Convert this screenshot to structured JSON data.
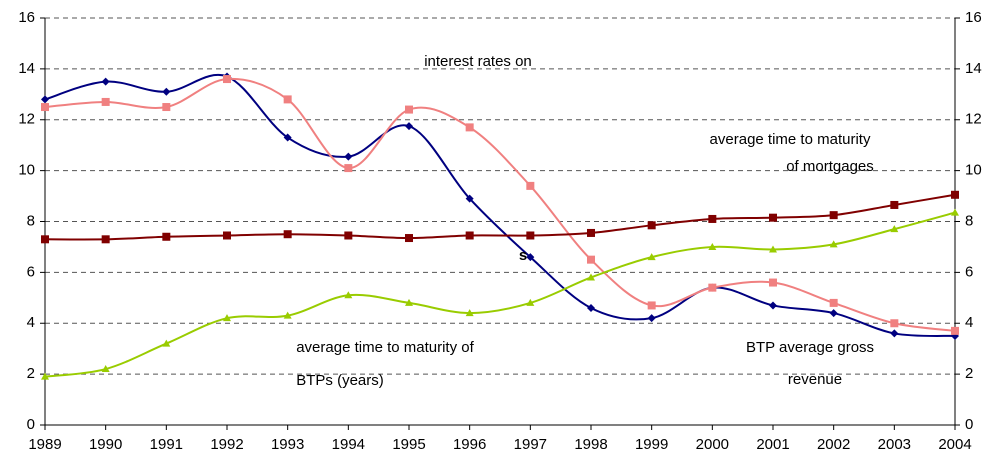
{
  "chart_data": {
    "type": "line",
    "categories": [
      "1989",
      "1990",
      "1991",
      "1992",
      "1993",
      "1994",
      "1995",
      "1996",
      "1997",
      "1998",
      "1999",
      "2000",
      "2001",
      "2002",
      "2003",
      "2004"
    ],
    "series": [
      {
        "color": "#000080",
        "marker": "diamond",
        "values": [
          12.8,
          13.5,
          13.1,
          13.7,
          11.3,
          10.55,
          11.75,
          8.9,
          6.6,
          4.6,
          4.2,
          5.4,
          4.7,
          4.4,
          3.6,
          3.5
        ]
      },
      {
        "color": "#f08080",
        "marker": "square",
        "values": [
          12.5,
          12.7,
          12.5,
          13.6,
          12.8,
          10.1,
          12.4,
          11.7,
          9.4,
          6.5,
          4.7,
          5.4,
          5.6,
          4.8,
          4.0,
          3.7
        ]
      },
      {
        "color": "#800000",
        "marker": "square",
        "values": [
          7.3,
          7.3,
          7.4,
          7.45,
          7.5,
          7.45,
          7.35,
          7.45,
          7.45,
          7.55,
          7.85,
          8.1,
          8.15,
          8.25,
          8.65,
          9.05
        ]
      },
      {
        "color": "#99cc00",
        "marker": "triangle",
        "values": [
          1.9,
          2.2,
          3.2,
          4.2,
          4.3,
          5.1,
          4.8,
          4.4,
          4.8,
          5.8,
          6.6,
          7.0,
          6.9,
          7.1,
          7.7,
          8.35
        ]
      }
    ],
    "ylim": [
      0,
      16
    ],
    "yticks": [
      0,
      2,
      4,
      6,
      8,
      10,
      12,
      14,
      16
    ],
    "y2lim": [
      0,
      16
    ],
    "y2ticks": [
      0,
      2,
      4,
      6,
      8,
      10,
      12,
      14,
      16
    ],
    "grid": true,
    "annotations": [
      "interest rates on",
      "average time to maturity",
      "of mortgages",
      "average time to maturity of",
      "BTPs (years)",
      "BTP average gross",
      "revenue",
      "s"
    ]
  }
}
